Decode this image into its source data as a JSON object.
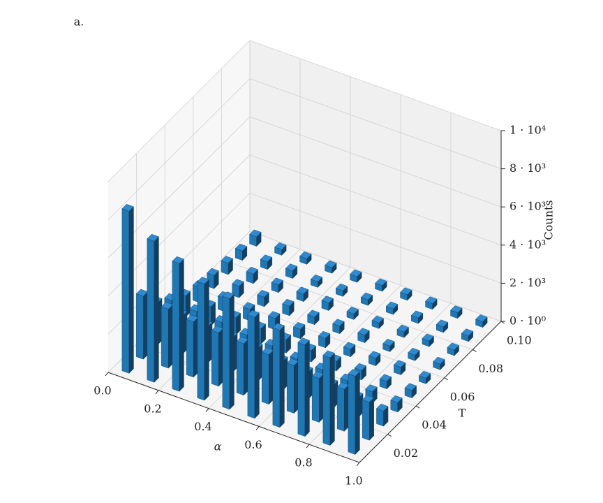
{
  "chart_data": {
    "type": "bar3d",
    "title": "a.",
    "x_label": "α",
    "y_label": "T",
    "z_label": "Counts",
    "x": [
      0.05,
      0.15,
      0.25,
      0.35,
      0.45,
      0.55,
      0.65,
      0.75,
      0.85,
      0.95
    ],
    "y": [
      0.005,
      0.015,
      0.025,
      0.035,
      0.045,
      0.055,
      0.065,
      0.075,
      0.085,
      0.095
    ],
    "values": [
      [
        8500,
        7400,
        6700,
        6100,
        5800,
        5300,
        5100,
        4800,
        4600,
        4100
      ],
      [
        3300,
        3100,
        2900,
        2800,
        2700,
        2600,
        2500,
        2300,
        2200,
        2000
      ],
      [
        2200,
        2000,
        1900,
        1800,
        1700,
        1500,
        1400,
        1200,
        1000,
        800
      ],
      [
        1600,
        1500,
        1400,
        1200,
        1100,
        900,
        800,
        700,
        600,
        500
      ],
      [
        1100,
        1000,
        900,
        800,
        700,
        600,
        500,
        500,
        400,
        400
      ],
      [
        800,
        700,
        600,
        600,
        500,
        500,
        400,
        400,
        400,
        300
      ],
      [
        700,
        600,
        500,
        500,
        400,
        400,
        400,
        300,
        300,
        300
      ],
      [
        600,
        500,
        400,
        400,
        400,
        300,
        300,
        300,
        300,
        300
      ],
      [
        500,
        400,
        400,
        300,
        300,
        300,
        300,
        300,
        300,
        300
      ],
      [
        500,
        300,
        300,
        300,
        300,
        300,
        300,
        300,
        300,
        300
      ]
    ],
    "color": "#1f77b4",
    "xlim": [
      0,
      1
    ],
    "xticks": [
      {
        "value": 0,
        "label": "0.0"
      },
      0.2,
      0.4,
      0.6,
      0.8,
      {
        "value": 1,
        "label": "1.0"
      }
    ],
    "ylim": [
      0,
      0.1
    ],
    "yticks": [
      0.02,
      0.04,
      0.06,
      0.08,
      {
        "value": 0.1,
        "label": "0.10"
      }
    ],
    "zlim": [
      0,
      10000
    ],
    "zticks": [
      {
        "value": 0,
        "label": "0 · 10⁰"
      },
      {
        "value": 2000,
        "label": "2 · 10³"
      },
      {
        "value": 4000,
        "label": "4 · 10³"
      },
      {
        "value": 6000,
        "label": "6 · 10³"
      },
      {
        "value": 8000,
        "label": "8 · 10³"
      },
      {
        "value": 10000,
        "label": "1 · 10⁴"
      }
    ],
    "grid": true
  }
}
